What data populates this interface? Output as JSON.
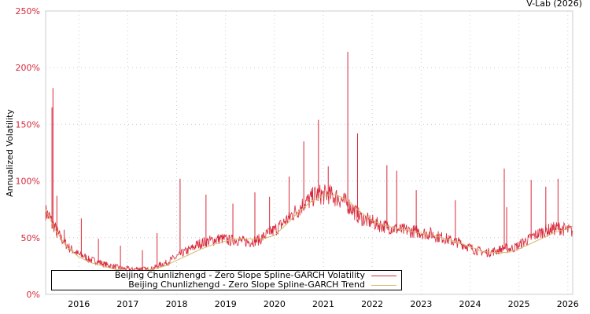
{
  "credit": "V-Lab (2026)",
  "chart_data": {
    "type": "line",
    "title": "",
    "xlabel": "",
    "ylabel": "Annualized Volatility",
    "xlim": [
      2015.32,
      2026.1
    ],
    "ylim": [
      0,
      250
    ],
    "grid": true,
    "legend_placement": "bottom-left",
    "y_ticks": [
      "0%",
      "50%",
      "100%",
      "150%",
      "200%",
      "250%"
    ],
    "y_tick_values": [
      0,
      50,
      100,
      150,
      200,
      250
    ],
    "x_ticks": [
      "2016",
      "2017",
      "2018",
      "2019",
      "2020",
      "2021",
      "2022",
      "2023",
      "2024",
      "2025",
      "2026"
    ],
    "x_tick_values": [
      2016,
      2017,
      2018,
      2019,
      2020,
      2021,
      2022,
      2023,
      2024,
      2025,
      2026
    ],
    "series": [
      {
        "name": "Beijing Chunlizhengd - Zero Slope Spline-GARCH Volatility",
        "color": "#d8283a",
        "x_start": 2015.3,
        "x_step": 0.1,
        "values": [
          72,
          66,
          58,
          50,
          45,
          40,
          37,
          34,
          33,
          30,
          29,
          28,
          26,
          25,
          24,
          23,
          22,
          22,
          21,
          22,
          22,
          21,
          22,
          24,
          26,
          27,
          30,
          32,
          35,
          37,
          39,
          42,
          44,
          45,
          46,
          47,
          48,
          47,
          46,
          47,
          46,
          45,
          45,
          46,
          47,
          50,
          53,
          55,
          58,
          62,
          66,
          70,
          73,
          78,
          80,
          84,
          86,
          85,
          86,
          84,
          83,
          80,
          77,
          73,
          68,
          65,
          63,
          62,
          60,
          59,
          58,
          57,
          56,
          55,
          55,
          54,
          54,
          53,
          52,
          52,
          50,
          49,
          48,
          46,
          45,
          44,
          42,
          40,
          38,
          37,
          36,
          36,
          37,
          38,
          40,
          39,
          40,
          42,
          45,
          47,
          50,
          52,
          54,
          55,
          56,
          57,
          56,
          55,
          54
        ],
        "spikes": [
          [
            2015.45,
            165
          ],
          [
            2015.47,
            182
          ],
          [
            2015.55,
            87
          ],
          [
            2015.7,
            57
          ],
          [
            2016.05,
            67
          ],
          [
            2016.4,
            49
          ],
          [
            2016.85,
            43
          ],
          [
            2017.3,
            39
          ],
          [
            2017.6,
            54
          ],
          [
            2018.07,
            102
          ],
          [
            2018.6,
            88
          ],
          [
            2019.15,
            80
          ],
          [
            2019.6,
            90
          ],
          [
            2019.9,
            86
          ],
          [
            2020.3,
            104
          ],
          [
            2020.6,
            135
          ],
          [
            2020.9,
            154
          ],
          [
            2021.1,
            113
          ],
          [
            2021.5,
            214
          ],
          [
            2021.7,
            142
          ],
          [
            2022.3,
            114
          ],
          [
            2022.5,
            109
          ],
          [
            2022.9,
            92
          ],
          [
            2023.7,
            83
          ],
          [
            2024.7,
            111
          ],
          [
            2024.75,
            77
          ],
          [
            2025.25,
            101
          ],
          [
            2025.55,
            95
          ],
          [
            2025.8,
            102
          ]
        ]
      },
      {
        "name": "Beijing Chunlizhengd - Zero Slope Spline-GARCH Trend",
        "color": "#d4b86a",
        "x": [
          2015.32,
          2015.5,
          2015.75,
          2016,
          2016.25,
          2016.5,
          2016.75,
          2017,
          2017.25,
          2017.5,
          2017.75,
          2018,
          2018.25,
          2018.5,
          2018.75,
          2019,
          2019.25,
          2019.5,
          2019.75,
          2020,
          2020.25,
          2020.5,
          2020.75,
          2021,
          2021.25,
          2021.5,
          2021.75,
          2022,
          2022.25,
          2022.5,
          2022.75,
          2023,
          2023.25,
          2023.5,
          2023.75,
          2024,
          2024.25,
          2024.5,
          2024.75,
          2025,
          2025.25,
          2025.5,
          2025.75,
          2026,
          2026.1
        ],
        "values": [
          75,
          58,
          42,
          33,
          28,
          25,
          22,
          21,
          21,
          22,
          25,
          30,
          35,
          40,
          44,
          47,
          49,
          49,
          49,
          52,
          62,
          73,
          82,
          87,
          88,
          83,
          73,
          65,
          61,
          58,
          56,
          54,
          52,
          49,
          46,
          42,
          38,
          37,
          37,
          40,
          45,
          50,
          55,
          58,
          60
        ]
      }
    ]
  }
}
